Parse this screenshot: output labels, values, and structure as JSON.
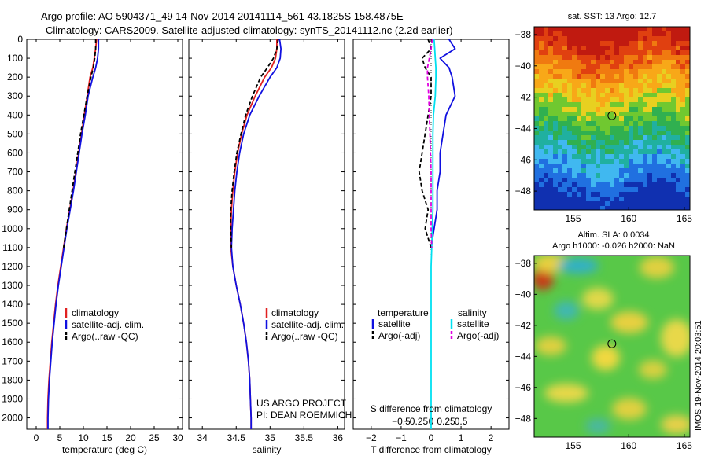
{
  "header": {
    "line1": "Argo profile: AO 5904371_49 14-Nov-2014 20141114_561 43.1825S 158.4875E",
    "line2": "Climatology: CARS2009. Satellite-adjusted climatology: synTS_20141112.nc (2.2d earlier)"
  },
  "credit": {
    "project": "US ARGO PROJECT",
    "pi": "PI: DEAN ROEMMICH",
    "stamp": "IMOS 19-Nov-2014 20:03:51"
  },
  "colors": {
    "climatology": "#e02020",
    "satellite": "#1010e0",
    "argo": "#000000",
    "satellite_salinity": "#00e0f0",
    "argo_salinity": "#e000e0"
  },
  "chart_data": [
    {
      "id": "temperature",
      "type": "line",
      "xlabel": "temperature (deg C)",
      "ylabel": "",
      "xlim": [
        -2,
        31
      ],
      "ylim": [
        2060,
        0
      ],
      "xticks": [
        0,
        5,
        10,
        15,
        20,
        25,
        30
      ],
      "yticks": [
        0,
        100,
        200,
        300,
        400,
        500,
        600,
        700,
        800,
        900,
        1000,
        1100,
        1200,
        1300,
        1400,
        1500,
        1600,
        1700,
        1800,
        1900,
        2000
      ],
      "legend": [
        "climatology",
        "satellite-adj. clim.",
        "Argo(..raw -QC)"
      ],
      "legend_loc": "lower-center",
      "series": [
        {
          "name": "climatology",
          "color": "#e02020",
          "style": "solid",
          "x": [
            12.8,
            12.6,
            12.3,
            12.0,
            11.4,
            10.8,
            10.2,
            9.6,
            9.0,
            8.4,
            7.8,
            7.1,
            6.4,
            5.8,
            5.2,
            4.6,
            4.1,
            3.7,
            3.3,
            3.0,
            2.7,
            2.5,
            2.4,
            2.4
          ],
          "y": [
            0,
            50,
            100,
            150,
            200,
            300,
            400,
            500,
            600,
            700,
            800,
            900,
            1000,
            1100,
            1200,
            1300,
            1400,
            1500,
            1600,
            1700,
            1800,
            1900,
            2000,
            2060
          ]
        },
        {
          "name": "satellite-adj. clim.",
          "color": "#1010e0",
          "style": "solid",
          "x": [
            13.2,
            13.2,
            13.0,
            12.6,
            12.0,
            11.0,
            10.4,
            9.7,
            9.1,
            8.5,
            7.9,
            7.2,
            6.5,
            5.9,
            5.3,
            4.7,
            4.2,
            3.8,
            3.4,
            3.1,
            2.8,
            2.6,
            2.5,
            2.5
          ],
          "y": [
            0,
            50,
            100,
            150,
            200,
            300,
            400,
            500,
            600,
            700,
            800,
            900,
            1000,
            1100,
            1200,
            1300,
            1400,
            1500,
            1600,
            1700,
            1800,
            1900,
            2000,
            2060
          ]
        },
        {
          "name": "Argo(..raw -QC)",
          "color": "#000000",
          "style": "dashed",
          "x": [
            12.6,
            12.6,
            12.4,
            12.1,
            11.6,
            10.8,
            10.1,
            9.4,
            8.8,
            8.2,
            7.6,
            7.0,
            6.4,
            5.8
          ],
          "y": [
            0,
            50,
            100,
            150,
            200,
            300,
            400,
            500,
            600,
            700,
            800,
            900,
            1000,
            1100
          ]
        }
      ]
    },
    {
      "id": "salinity",
      "type": "line",
      "xlabel": "salinity",
      "ylabel": "",
      "xlim": [
        33.8,
        36.1
      ],
      "ylim": [
        2060,
        0
      ],
      "xticks": [
        34,
        34.5,
        35,
        35.5,
        36
      ],
      "legend": [
        "climatology",
        "satellite-adj. clim.",
        "Argo(..raw -QC)"
      ],
      "legend_loc": "lower-center",
      "series": [
        {
          "name": "climatology",
          "color": "#e02020",
          "style": "solid",
          "x": [
            35.1,
            35.1,
            35.08,
            35.02,
            34.92,
            34.78,
            34.66,
            34.58,
            34.52,
            34.48,
            34.45,
            34.43,
            34.42,
            34.42,
            34.45,
            34.5,
            34.56,
            34.61,
            34.65,
            34.68,
            34.7,
            34.71,
            34.72,
            34.72
          ],
          "y": [
            0,
            50,
            100,
            150,
            200,
            300,
            400,
            500,
            600,
            700,
            800,
            900,
            1000,
            1100,
            1200,
            1300,
            1400,
            1500,
            1600,
            1700,
            1800,
            1900,
            2000,
            2060
          ]
        },
        {
          "name": "satellite-adj. clim.",
          "color": "#1010e0",
          "style": "solid",
          "x": [
            35.14,
            35.16,
            35.15,
            35.1,
            35.0,
            34.84,
            34.7,
            34.61,
            34.55,
            34.51,
            34.48,
            34.46,
            34.44,
            34.43,
            34.45,
            34.5,
            34.56,
            34.61,
            34.65,
            34.68,
            34.7,
            34.71,
            34.72,
            34.72
          ],
          "y": [
            0,
            50,
            100,
            150,
            200,
            300,
            400,
            500,
            600,
            700,
            800,
            900,
            1000,
            1100,
            1200,
            1300,
            1400,
            1500,
            1600,
            1700,
            1800,
            1900,
            2000,
            2060
          ]
        },
        {
          "name": "Argo(..raw -QC)",
          "color": "#000000",
          "style": "dashed",
          "x": [
            35.12,
            35.1,
            35.05,
            34.96,
            34.86,
            34.74,
            34.64,
            34.57,
            34.51,
            34.47,
            34.44,
            34.42,
            34.42,
            34.43
          ],
          "y": [
            0,
            50,
            100,
            150,
            200,
            300,
            400,
            500,
            600,
            700,
            800,
            900,
            1000,
            1100
          ]
        }
      ]
    },
    {
      "id": "difference",
      "type": "line",
      "xlabel": "T difference from climatology",
      "xlabel2": "S difference from climatology",
      "ylabel": "",
      "xlim": [
        -2.6,
        2.6
      ],
      "ylim": [
        2060,
        0
      ],
      "xticks": [
        -2,
        -1,
        0,
        1,
        2
      ],
      "xticks2": [
        -0.5,
        -0.25,
        0,
        0.25,
        0.5
      ],
      "legend_headers": [
        "temperature",
        "salinity"
      ],
      "legend": [
        "satellite",
        "Argo(-adj)",
        "satellite",
        "Argo(-adj)"
      ],
      "legend_loc": "lower-center",
      "series": [
        {
          "name": "satellite",
          "group": "temperature",
          "color": "#1010e0",
          "style": "solid",
          "x": [
            0.6,
            0.8,
            0.3,
            0.6,
            0.7,
            0.8,
            0.5,
            0.4,
            0.3,
            0.3,
            0.2,
            0.2,
            0.1,
            0.0
          ],
          "y": [
            0,
            50,
            100,
            150,
            200,
            300,
            400,
            500,
            600,
            700,
            800,
            900,
            1000,
            1100
          ]
        },
        {
          "name": "Argo(-adj)",
          "group": "temperature",
          "color": "#000000",
          "style": "dashed",
          "x": [
            -0.1,
            0.0,
            -0.3,
            -0.2,
            0.0,
            0.0,
            -0.1,
            -0.2,
            -0.3,
            -0.4,
            -0.3,
            -0.1,
            -0.2,
            0.0
          ],
          "y": [
            0,
            50,
            100,
            150,
            200,
            300,
            400,
            500,
            600,
            700,
            800,
            900,
            1000,
            1100
          ]
        },
        {
          "name": "satellite",
          "group": "salinity",
          "color": "#00e0f0",
          "style": "solid",
          "x": [
            0.05,
            0.06,
            0.07,
            0.08,
            0.08,
            0.07,
            0.04,
            0.03,
            0.03,
            0.03,
            0.03,
            0.03,
            0.02,
            0.01,
            0.0,
            0.0,
            0.0,
            0.0,
            0.0,
            0.0,
            0.0,
            0.0,
            0.0,
            0.0
          ],
          "y": [
            0,
            50,
            100,
            150,
            200,
            300,
            400,
            500,
            600,
            700,
            800,
            900,
            1000,
            1100,
            1200,
            1300,
            1400,
            1500,
            1600,
            1700,
            1800,
            1900,
            2000,
            2060
          ]
        },
        {
          "name": "Argo(-adj)",
          "group": "salinity",
          "color": "#e000e0",
          "style": "dashed",
          "x": [
            0.02,
            0.0,
            -0.03,
            -0.06,
            -0.06,
            -0.04,
            -0.03,
            -0.02,
            -0.01,
            0.0,
            0.0,
            0.0,
            0.0,
            0.01
          ],
          "y": [
            0,
            50,
            100,
            150,
            200,
            300,
            400,
            500,
            600,
            700,
            800,
            900,
            1000,
            1100
          ]
        }
      ]
    },
    {
      "id": "sst_map",
      "type": "heatmap",
      "title": "sat. SST: 13 Argo: 12.7",
      "xlim": [
        151.5,
        165.5
      ],
      "ylim": [
        -49.2,
        -37.5
      ],
      "xticks": [
        155,
        160,
        165
      ],
      "yticks": [
        -38,
        -40,
        -42,
        -44,
        -46,
        -48
      ],
      "marker": {
        "lon": 158.4875,
        "lat": -43.1825
      },
      "bands": [
        {
          "lat": -38,
          "color": "#c01a10"
        },
        {
          "lat": -39,
          "color": "#e04010"
        },
        {
          "lat": -40,
          "color": "#f07a10"
        },
        {
          "lat": -41,
          "color": "#f8a818"
        },
        {
          "lat": -42,
          "color": "#e8d020"
        },
        {
          "lat": -43,
          "color": "#70c830"
        },
        {
          "lat": -44,
          "color": "#30b050"
        },
        {
          "lat": -45,
          "color": "#20b0a0"
        },
        {
          "lat": -46,
          "color": "#40b8f0"
        },
        {
          "lat": -47,
          "color": "#2070e0"
        },
        {
          "lat": -48.5,
          "color": "#1030b0"
        }
      ]
    },
    {
      "id": "sla_map",
      "type": "heatmap",
      "title": "Altim. SLA: 0.0034",
      "subtitle": "Argo h1000: -0.026 h2000: NaN",
      "xlim": [
        151.5,
        165.5
      ],
      "ylim": [
        -49.2,
        -37.5
      ],
      "xticks": [
        155,
        160,
        165
      ],
      "yticks": [
        -38,
        -40,
        -42,
        -44,
        -46,
        -48
      ],
      "marker": {
        "lon": 158.4875,
        "lat": -43.1825
      },
      "background": "#58c848"
    }
  ]
}
